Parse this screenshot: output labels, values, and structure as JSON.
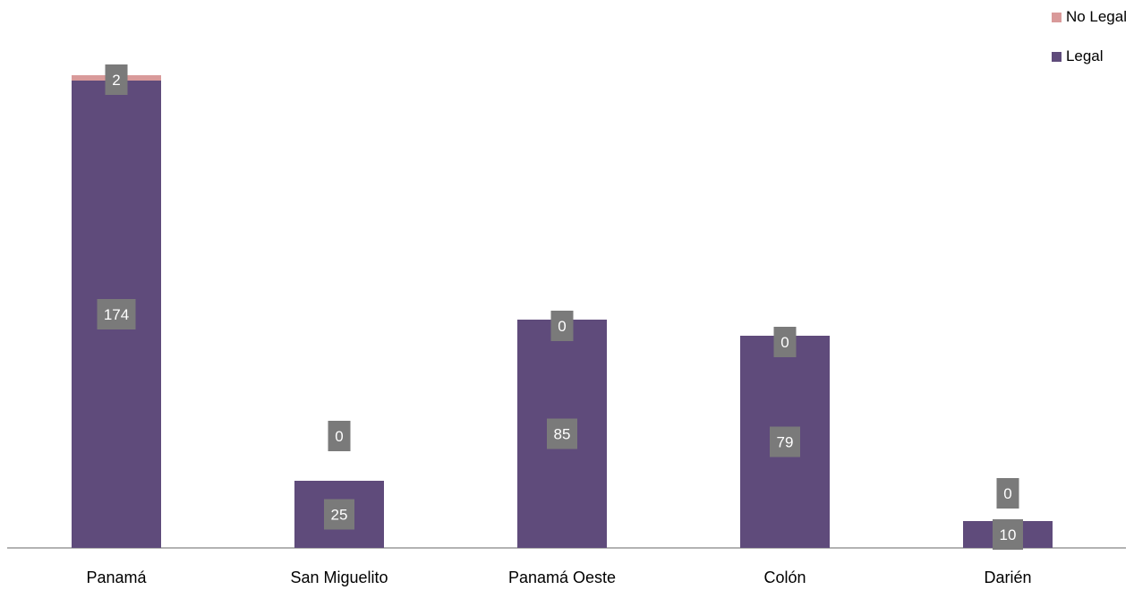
{
  "chart_data": {
    "type": "bar",
    "stacked": true,
    "categories": [
      "Panamá",
      "San Miguelito",
      "Panamá Oeste",
      "Colón",
      "Darién"
    ],
    "series": [
      {
        "name": "Legal",
        "values": [
          174,
          25,
          85,
          79,
          10
        ],
        "color": "#5f4b7b"
      },
      {
        "name": "No Legal",
        "values": [
          2,
          0,
          0,
          0,
          0
        ],
        "color": "#d99a9a"
      }
    ],
    "ylim": [
      0,
      180
    ],
    "grid": false,
    "legend_position": "top-right",
    "data_label_color": "#7a7a7a"
  }
}
